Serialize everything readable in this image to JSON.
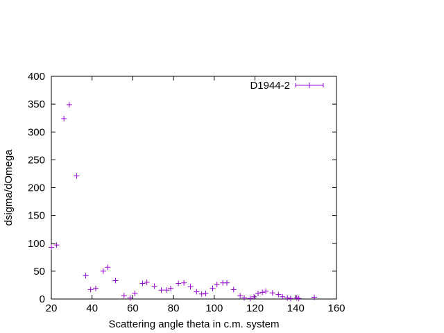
{
  "chart_data": {
    "type": "scatter",
    "xlabel": "Scattering angle theta in c.m. system",
    "ylabel": "dsigma/dOmega",
    "xlim": [
      20,
      160
    ],
    "ylim": [
      0,
      400
    ],
    "x_ticks": [
      20,
      40,
      60,
      80,
      100,
      120,
      140,
      160
    ],
    "y_ticks": [
      0,
      50,
      100,
      150,
      200,
      250,
      300,
      350,
      400
    ],
    "x_tick_labels": [
      "20",
      "40",
      "60",
      "80",
      "100",
      "120",
      "140",
      "160"
    ],
    "y_tick_labels": [
      "0",
      "50",
      "100",
      "150",
      "200",
      "250",
      "300",
      "350",
      "400"
    ],
    "grid": false,
    "legend_position": "top-right",
    "series": [
      {
        "name": "D1944-2",
        "color": "#9400d3",
        "marker": "plus",
        "x_error_bar_in_legend": true,
        "points": [
          [
            20.0,
            93
          ],
          [
            22.6,
            97
          ],
          [
            26.2,
            324
          ],
          [
            28.8,
            349
          ],
          [
            32.4,
            221
          ],
          [
            36.9,
            42
          ],
          [
            39.3,
            17
          ],
          [
            41.8,
            19
          ],
          [
            45.5,
            50
          ],
          [
            47.7,
            57
          ],
          [
            51.5,
            33
          ],
          [
            55.7,
            6
          ],
          [
            58.7,
            2
          ],
          [
            61.0,
            10
          ],
          [
            64.8,
            28
          ],
          [
            66.9,
            30
          ],
          [
            70.6,
            23
          ],
          [
            74.0,
            16
          ],
          [
            76.7,
            16
          ],
          [
            78.6,
            19
          ],
          [
            82.4,
            28
          ],
          [
            85.1,
            29
          ],
          [
            88.3,
            22
          ],
          [
            91.3,
            13
          ],
          [
            93.8,
            9
          ],
          [
            95.8,
            10
          ],
          [
            99.2,
            19
          ],
          [
            101.3,
            26
          ],
          [
            104.2,
            29
          ],
          [
            106.2,
            29
          ],
          [
            109.5,
            17
          ],
          [
            112.7,
            6
          ],
          [
            114.7,
            2
          ],
          [
            117.6,
            1
          ],
          [
            119.5,
            4
          ],
          [
            121.5,
            10
          ],
          [
            123.6,
            12
          ],
          [
            125.3,
            14
          ],
          [
            128.6,
            11
          ],
          [
            131.5,
            8
          ],
          [
            133.5,
            4
          ],
          [
            135.9,
            2
          ],
          [
            137.5,
            1
          ],
          [
            140.5,
            2
          ],
          [
            141.5,
            1
          ],
          [
            149.1,
            3
          ]
        ]
      }
    ]
  }
}
